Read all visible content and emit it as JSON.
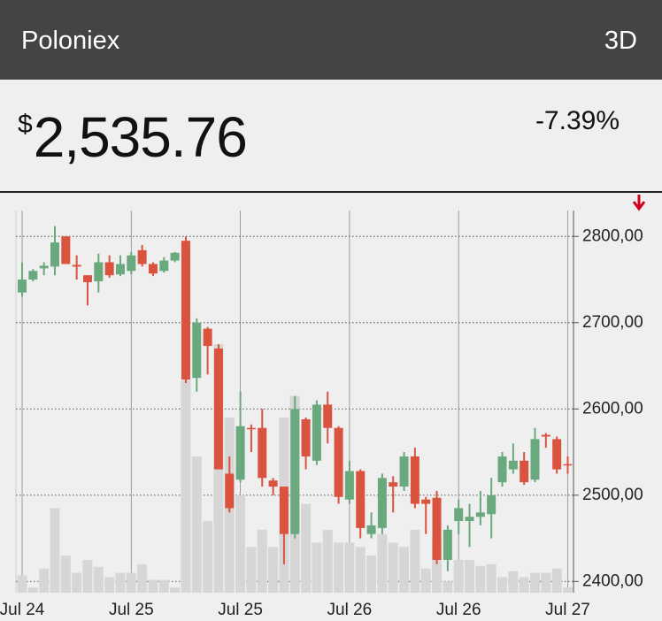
{
  "header": {
    "exchange": "Poloniex",
    "range": "3D"
  },
  "quote": {
    "currency": "$",
    "price": "2,535.76",
    "change": "-7.39%"
  },
  "chart_data": {
    "type": "candlestick",
    "categories": [
      "Jul 24",
      null,
      null,
      null,
      null,
      null,
      null,
      null,
      null,
      null,
      "Jul 25",
      null,
      null,
      null,
      null,
      null,
      null,
      null,
      null,
      null,
      "Jul 25",
      null,
      null,
      null,
      null,
      null,
      null,
      null,
      null,
      null,
      "Jul 26",
      null,
      null,
      null,
      null,
      null,
      null,
      null,
      null,
      null,
      "Jul 26",
      null,
      null,
      null,
      null,
      null,
      null,
      null,
      null,
      null,
      "Jul 27"
    ],
    "open": [
      2735,
      2750,
      2763,
      2765,
      2800,
      2767,
      2755,
      2748,
      2770,
      2756,
      2760,
      2784,
      2768,
      2760,
      2772,
      2795,
      2636,
      2693,
      2670,
      2525,
      2518,
      2578,
      2578,
      2517,
      2510,
      2455,
      2588,
      2540,
      2605,
      2578,
      2495,
      2528,
      2455,
      2462,
      2515,
      2510,
      2545,
      2495,
      2497,
      2425,
      2470,
      2470,
      2475,
      2478,
      2515,
      2530,
      2540,
      2518,
      2570,
      2565,
      2536
    ],
    "high": [
      2770,
      2762,
      2770,
      2812,
      2800,
      2778,
      2755,
      2780,
      2778,
      2778,
      2782,
      2790,
      2770,
      2776,
      2782,
      2800,
      2705,
      2695,
      2675,
      2545,
      2620,
      2582,
      2600,
      2520,
      2510,
      2615,
      2590,
      2610,
      2620,
      2580,
      2540,
      2530,
      2480,
      2525,
      2522,
      2550,
      2555,
      2498,
      2505,
      2465,
      2495,
      2490,
      2505,
      2520,
      2550,
      2560,
      2550,
      2578,
      2572,
      2568,
      2545
    ],
    "low": [
      2730,
      2748,
      2755,
      2755,
      2768,
      2750,
      2720,
      2735,
      2752,
      2754,
      2756,
      2765,
      2754,
      2758,
      2770,
      2630,
      2620,
      2640,
      2530,
      2480,
      2515,
      2550,
      2510,
      2500,
      2420,
      2450,
      2530,
      2535,
      2560,
      2490,
      2490,
      2450,
      2450,
      2455,
      2480,
      2505,
      2485,
      2455,
      2420,
      2412,
      2455,
      2440,
      2465,
      2450,
      2510,
      2525,
      2512,
      2515,
      2555,
      2525,
      2525
    ],
    "close": [
      2750,
      2760,
      2766,
      2793,
      2768,
      2765,
      2747,
      2770,
      2755,
      2768,
      2778,
      2768,
      2757,
      2772,
      2781,
      2634,
      2700,
      2673,
      2530,
      2485,
      2580,
      2577,
      2520,
      2510,
      2455,
      2600,
      2545,
      2605,
      2578,
      2498,
      2528,
      2462,
      2465,
      2520,
      2510,
      2545,
      2490,
      2490,
      2425,
      2460,
      2485,
      2475,
      2480,
      2500,
      2545,
      2540,
      2515,
      2565,
      2568,
      2530,
      2535
    ],
    "volume": [
      20,
      6,
      28,
      98,
      43,
      23,
      38,
      30,
      18,
      23,
      23,
      33,
      15,
      15,
      6,
      246,
      158,
      83,
      288,
      203,
      113,
      53,
      73,
      53,
      203,
      228,
      103,
      58,
      73,
      58,
      58,
      53,
      43,
      68,
      58,
      53,
      73,
      28,
      63,
      13,
      38,
      38,
      31,
      33,
      18,
      25,
      18,
      23,
      23,
      28,
      6
    ],
    "colors": {
      "up": "#69a97d",
      "down": "#d9533f",
      "volume": "#d6d6d6"
    },
    "ylim": [
      2387,
      2830
    ],
    "yticks": [
      {
        "value": 2400,
        "label": "2400,00"
      },
      {
        "value": 2500,
        "label": "2500,00"
      },
      {
        "value": 2600,
        "label": "2600,00"
      },
      {
        "value": 2700,
        "label": "2700,00"
      },
      {
        "value": 2800,
        "label": "2800,00"
      }
    ],
    "grid": true
  }
}
